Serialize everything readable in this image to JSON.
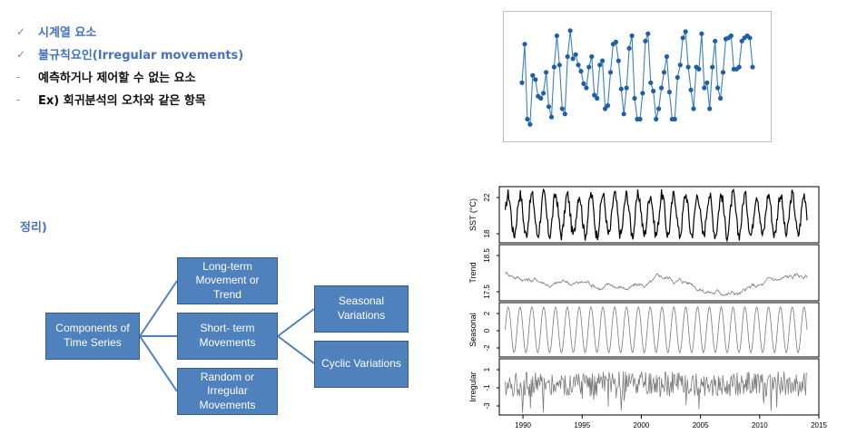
{
  "bullets": [
    {
      "mark": "✓",
      "text": "시계열 요소",
      "color": "blue"
    },
    {
      "mark": "✓",
      "text": "불규칙요인(Irregular movements)",
      "color": "blue"
    },
    {
      "mark": "-",
      "text": "예측하거나 제어할 수 없는 요소",
      "color": "black"
    },
    {
      "mark": "-",
      "text": "Ex) 회귀분석의 오차와 같은 항목",
      "color": "black"
    }
  ],
  "summary_title": "정리)",
  "diagram": {
    "root": "Components of\nTime Series",
    "level1": [
      "Long-term\nMovement or\nTrend",
      "Short- term\nMovements",
      "Random or\nIrregular\nMovements"
    ],
    "level2": [
      "Seasonal\nVariations",
      "Cyclic Variations"
    ]
  },
  "colors": {
    "box_fill": "#4f81bd",
    "box_border": "#385d8a",
    "connector": "#4f81bd",
    "accent_blue": "#4472c4",
    "series_blue": "#1f5fa8"
  },
  "chart_data": [
    {
      "type": "line",
      "values": [
        0.45,
        0.82,
        0.1,
        0.05,
        0.52,
        0.48,
        0.32,
        0.3,
        0.35,
        0.55,
        0.22,
        0.12,
        0.6,
        0.9,
        0.62,
        0.2,
        0.15,
        0.7,
        0.95,
        0.68,
        0.72,
        0.62,
        0.56,
        0.44,
        0.4,
        0.6,
        0.7,
        0.33,
        0.3,
        0.62,
        0.66,
        0.2,
        0.23,
        0.55,
        0.82,
        0.84,
        0.66,
        0.39,
        0.15,
        0.4,
        0.78,
        0.9,
        0.3,
        0.1,
        0.1,
        0.35,
        0.85,
        0.92,
        0.45,
        0.37,
        0.1,
        0.2,
        0.4,
        0.55,
        0.7,
        0.36,
        0.1,
        0.1,
        0.5,
        0.62,
        0.88,
        0.94,
        0.6,
        0.38,
        0.2,
        0.6,
        0.58,
        0.92,
        0.4,
        0.45,
        0.2,
        0.6,
        0.85,
        0.4,
        0.3,
        0.55,
        0.87,
        0.88,
        0.9,
        0.58,
        0.58,
        0.6,
        0.85,
        0.88,
        0.9,
        0.88,
        0.6
      ]
    },
    {
      "type": "line",
      "x_ticks": [
        "1990",
        "1995",
        "2000",
        "2005",
        "2010",
        "2015"
      ],
      "x_range": [
        1988,
        2015
      ],
      "panels": [
        {
          "ylabel": "SST (°C)",
          "ticks": [
            "22",
            "18"
          ]
        },
        {
          "ylabel": "Trend",
          "ticks": [
            "18.5",
            "17.5"
          ]
        },
        {
          "ylabel": "Seasonal",
          "ticks": [
            "2",
            "0",
            "-2"
          ]
        },
        {
          "ylabel": "Irregular",
          "ticks": [
            "1",
            "-1",
            "-3"
          ]
        }
      ]
    }
  ]
}
